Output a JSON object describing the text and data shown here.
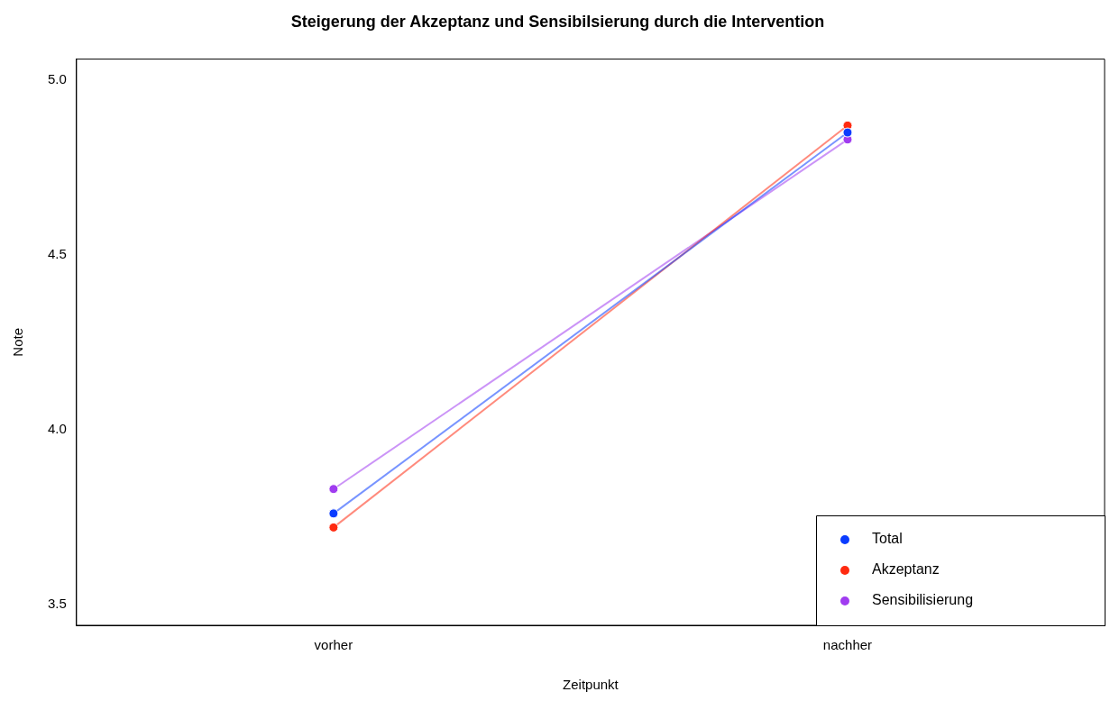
{
  "chart_data": {
    "type": "line",
    "title": "Steigerung der Akzeptanz und Sensibilsierung durch die Intervention",
    "xlabel": "Zeitpunkt",
    "ylabel": "Note",
    "categories": [
      "vorher",
      "nachher"
    ],
    "series": [
      {
        "name": "Total",
        "color": "#0a3cff",
        "values": [
          3.76,
          4.85
        ]
      },
      {
        "name": "Akzeptanz",
        "color": "#ff2a10",
        "values": [
          3.72,
          4.87
        ]
      },
      {
        "name": "Sensibilisierung",
        "color": "#a03cf0",
        "values": [
          3.83,
          4.83
        ]
      }
    ],
    "ylim": [
      3.44,
      5.06
    ],
    "yticks": [
      3.5,
      {
        "value": 4,
        "label": "4.0"
      },
      4.5,
      {
        "value": 5,
        "label": "5.0"
      }
    ],
    "grid": false,
    "legend": "bottom right",
    "marker": "circle",
    "line_style": "solid"
  }
}
